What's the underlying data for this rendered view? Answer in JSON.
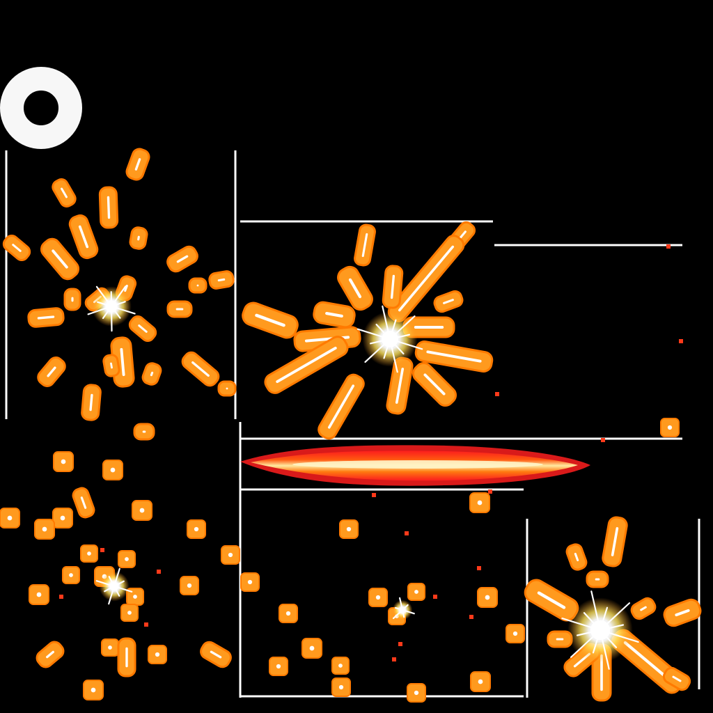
{
  "sprite_sheet": {
    "background_color": "#000000",
    "frame_line_color": "#ffffff",
    "colors": {
      "fill": "#ff9a1e",
      "outline": "#ff7a00",
      "core": "#ffffff",
      "hot_center": "#ffe25a",
      "beam_outer": "#ff1e1e",
      "beam_mid": "#ff5a10",
      "beam_inner": "#ffd25a",
      "ember_dot": "#ff3a1a"
    },
    "sprites": [
      {
        "kind": "ring",
        "name": "white-ring-glow"
      },
      {
        "kind": "burst",
        "name": "spark-burst-scattered"
      },
      {
        "kind": "burst",
        "name": "spark-burst-radial"
      },
      {
        "kind": "beam",
        "name": "horizontal-fire-beam"
      },
      {
        "kind": "embers",
        "name": "ember-cluster-left"
      },
      {
        "kind": "embers",
        "name": "ember-cluster-center"
      },
      {
        "kind": "burst",
        "name": "spark-burst-star"
      }
    ]
  }
}
